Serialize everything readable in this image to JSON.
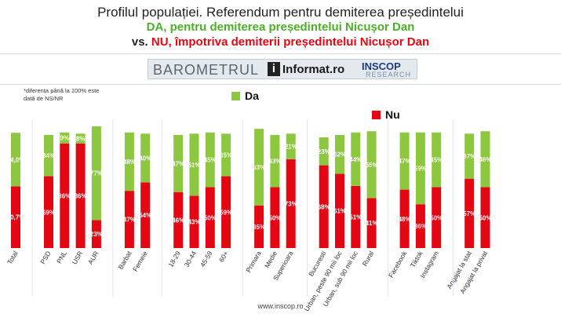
{
  "header": {
    "title_line1": "Profilul populației. Referendum pentru demiterea președintelui",
    "title_line2": "DA, pentru demiterea președintelui Nicușor Dan",
    "title_line3_vs": "vs. ",
    "title_line3_nu": "NU, împotriva demiterii președintelui Nicușor Dan"
  },
  "banner": {
    "barometrul": "BAROMETRUL",
    "informat": "Informat.ro",
    "informat_mark": "i",
    "inscop": "INSCOP",
    "research": "RESEARCH"
  },
  "note": "*diferența până la 100% este dată de NS/NR",
  "footer": "www.inscop.ro",
  "colors": {
    "da": "#8dc63f",
    "nu": "#e30613",
    "gridline": "#d8dde2"
  },
  "chart_data": {
    "type": "bar",
    "stacked": true,
    "legend": [
      "Da",
      "Nu"
    ],
    "legend_placement": "top",
    "ylim": [
      0,
      100
    ],
    "grid": false,
    "categories": [
      "Total",
      "PSD",
      "PNL",
      "USR",
      "AUR",
      "Barbat",
      "Femeie",
      "18-29",
      "30-44",
      "45-59",
      "60+",
      "Primara",
      "Medie",
      "Superioara",
      "Bucuresti",
      "Urban, peste 90 mii loc",
      "Urban, sub 90 mii loc",
      "Rural",
      "Facebook",
      "Tiktok",
      "Instagram",
      "Angajat la stat",
      "Angajat la privat"
    ],
    "groups": [
      [
        "Total"
      ],
      [
        "PSD",
        "PNL",
        "USR",
        "AUR"
      ],
      [
        "Barbat",
        "Femeie"
      ],
      [
        "18-29",
        "30-44",
        "45-59",
        "60+"
      ],
      [
        "Primara",
        "Medie",
        "Superioara"
      ],
      [
        "Bucuresti",
        "Urban, peste 90 mii loc",
        "Urban, sub 90 mii loc",
        "Rural"
      ],
      [
        "Facebook",
        "Tiktok",
        "Instagram"
      ],
      [
        "Angajat la stat",
        "Angajat la privat"
      ]
    ],
    "series": [
      {
        "name": "Nu",
        "values": [
          50.7,
          59,
          86,
          86,
          23,
          47,
          54,
          46,
          43,
          50,
          59,
          35,
          50,
          73,
          68,
          61,
          51,
          41,
          48,
          36,
          50,
          57,
          50
        ],
        "labels": [
          "50,7%",
          "59%",
          "86%",
          "86%",
          "23%",
          "47%",
          "54%",
          "46%",
          "43%",
          "50%",
          "59%",
          "35%",
          "50%",
          "73%",
          "68%",
          "61%",
          "51%",
          "41%",
          "48%",
          "36%",
          "50%",
          "57%",
          "50%"
        ]
      },
      {
        "name": "Da",
        "values": [
          44.0,
          34,
          9,
          8,
          77,
          48,
          40,
          47,
          51,
          45,
          35,
          63,
          43,
          21,
          23,
          32,
          44,
          55,
          47,
          59,
          45,
          37,
          46
        ],
        "labels": [
          "44,0%",
          "34%",
          "9%",
          "8%",
          "77%",
          "48%",
          "40%",
          "47%",
          "51%",
          "45%",
          "35%",
          "63%",
          "43%",
          "21%",
          "23%",
          "32%",
          "44%",
          "55%",
          "47%",
          "59%",
          "45%",
          "37%",
          "46%"
        ]
      }
    ]
  }
}
